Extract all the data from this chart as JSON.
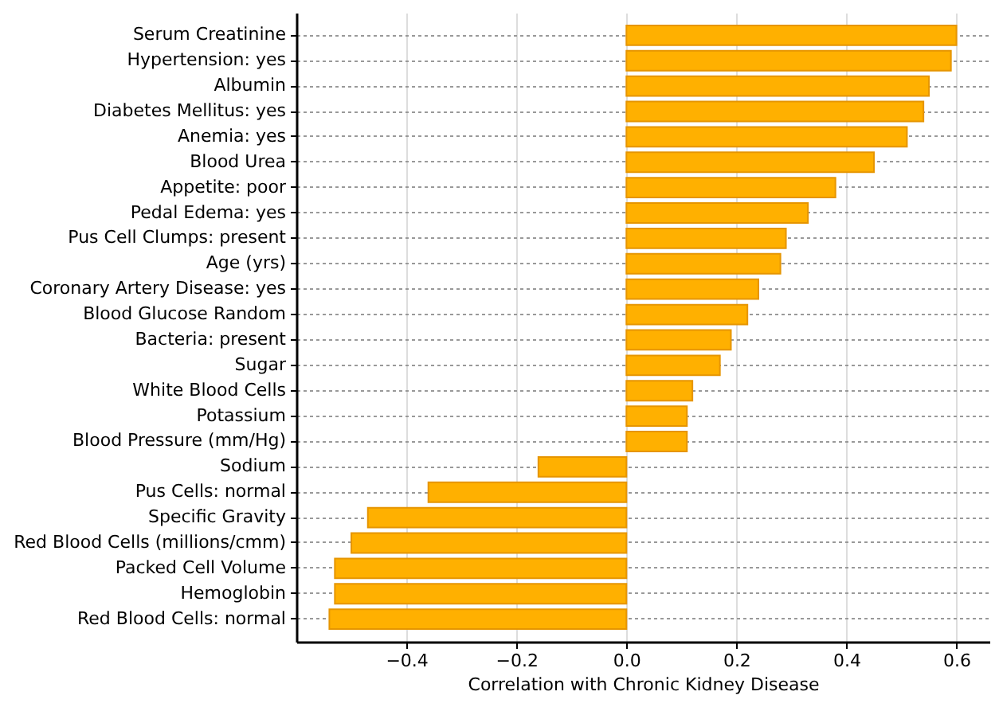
{
  "chart_data": {
    "type": "bar",
    "orientation": "horizontal",
    "xlabel": "Correlation with Chronic Kidney Disease",
    "categories": [
      "Serum Creatinine",
      "Hypertension: yes",
      "Albumin",
      "Diabetes Mellitus: yes",
      "Anemia: yes",
      "Blood Urea",
      "Appetite: poor",
      "Pedal Edema: yes",
      "Pus Cell Clumps: present",
      "Age (yrs)",
      "Coronary Artery Disease: yes",
      "Blood Glucose Random",
      "Bacteria: present",
      "Sugar",
      "White Blood Cells",
      "Potassium",
      "Blood Pressure (mm/Hg)",
      "Sodium",
      "Pus Cells: normal",
      "Specific Gravity",
      "Red Blood Cells (millions/cmm)",
      "Packed Cell Volume",
      "Hemoglobin",
      "Red Blood Cells: normal"
    ],
    "values": [
      0.6,
      0.59,
      0.55,
      0.54,
      0.51,
      0.45,
      0.38,
      0.33,
      0.29,
      0.28,
      0.24,
      0.22,
      0.19,
      0.17,
      0.12,
      0.11,
      0.11,
      -0.16,
      -0.36,
      -0.47,
      -0.5,
      -0.53,
      -0.53,
      -0.54
    ],
    "color": "#ffb000",
    "xlim": [
      -0.6,
      0.66
    ],
    "xticks": [
      {
        "value": -0.4,
        "label": "−0.4"
      },
      {
        "value": -0.2,
        "label": "−0.2"
      },
      {
        "value": 0,
        "label": "0.0"
      },
      {
        "value": 0.2,
        "label": "0.2"
      },
      {
        "value": 0.4,
        "label": "0.4"
      },
      {
        "value": 0.6,
        "label": "0.6"
      }
    ],
    "grid": true
  }
}
